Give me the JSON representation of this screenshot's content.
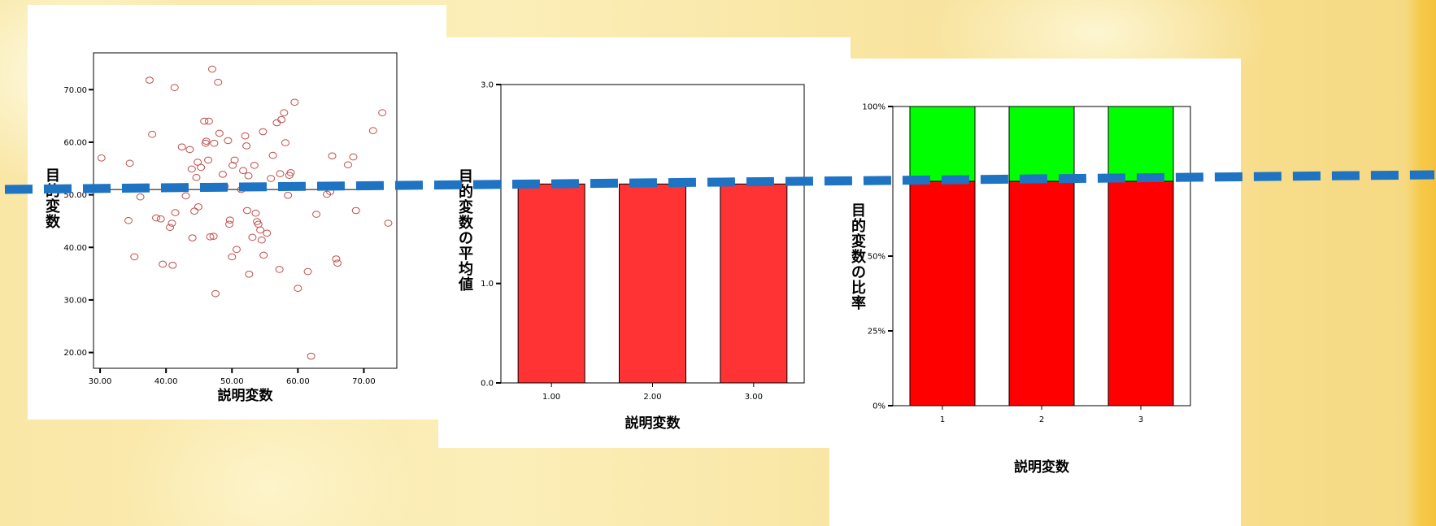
{
  "colors": {
    "scatter_marker": "#c0504d",
    "bar_fill": "#ff3333",
    "stack_lower": "#ff0000",
    "stack_upper": "#00ff00",
    "dashed_line": "#1f73c3"
  },
  "chart_data": [
    {
      "type": "scatter",
      "title": "",
      "xlabel": "説明変数",
      "ylabel": "目的変数",
      "xlim": [
        29,
        75
      ],
      "ylim": [
        17,
        77
      ],
      "x_ticks": [
        "30.00",
        "40.00",
        "50.00",
        "60.00",
        "70.00"
      ],
      "y_ticks": [
        "20.00",
        "30.00",
        "40.00",
        "50.00",
        "60.00",
        "70.00"
      ],
      "mean_line": 51.0,
      "points": [
        [
          30.2,
          57.0
        ],
        [
          34.5,
          56.0
        ],
        [
          34.3,
          45.1
        ],
        [
          35.2,
          38.2
        ],
        [
          36.1,
          49.6
        ],
        [
          37.5,
          71.8
        ],
        [
          37.9,
          61.5
        ],
        [
          38.5,
          45.6
        ],
        [
          39.2,
          45.4
        ],
        [
          39.5,
          36.8
        ],
        [
          40.6,
          43.8
        ],
        [
          40.9,
          44.6
        ],
        [
          41.0,
          36.6
        ],
        [
          41.3,
          70.4
        ],
        [
          41.4,
          46.6
        ],
        [
          41.6,
          51.5
        ],
        [
          42.4,
          59.1
        ],
        [
          43.0,
          49.8
        ],
        [
          43.6,
          58.6
        ],
        [
          43.9,
          54.9
        ],
        [
          44.0,
          41.8
        ],
        [
          44.3,
          46.9
        ],
        [
          44.6,
          53.3
        ],
        [
          44.8,
          56.2
        ],
        [
          44.9,
          47.7
        ],
        [
          45.3,
          55.2
        ],
        [
          45.8,
          64.0
        ],
        [
          46.0,
          59.8
        ],
        [
          46.1,
          60.2
        ],
        [
          46.4,
          56.6
        ],
        [
          46.5,
          64.0
        ],
        [
          46.7,
          42.0
        ],
        [
          47.0,
          73.9
        ],
        [
          47.2,
          42.1
        ],
        [
          47.3,
          59.8
        ],
        [
          47.5,
          31.2
        ],
        [
          47.9,
          71.4
        ],
        [
          48.1,
          61.7
        ],
        [
          48.6,
          53.9
        ],
        [
          48.9,
          51.6
        ],
        [
          49.4,
          60.3
        ],
        [
          49.6,
          44.4
        ],
        [
          49.7,
          45.2
        ],
        [
          50.0,
          38.2
        ],
        [
          50.1,
          55.6
        ],
        [
          50.4,
          56.6
        ],
        [
          50.7,
          39.6
        ],
        [
          51.4,
          51.0
        ],
        [
          51.7,
          54.6
        ],
        [
          52.0,
          61.2
        ],
        [
          52.2,
          59.3
        ],
        [
          52.3,
          47.0
        ],
        [
          52.5,
          53.6
        ],
        [
          52.6,
          34.9
        ],
        [
          52.9,
          51.5
        ],
        [
          53.1,
          41.9
        ],
        [
          53.4,
          55.6
        ],
        [
          53.6,
          46.5
        ],
        [
          53.8,
          44.9
        ],
        [
          54.0,
          44.4
        ],
        [
          54.3,
          43.3
        ],
        [
          54.5,
          41.4
        ],
        [
          54.7,
          62.0
        ],
        [
          54.8,
          38.5
        ],
        [
          55.3,
          42.7
        ],
        [
          55.9,
          53.1
        ],
        [
          56.2,
          57.5
        ],
        [
          56.8,
          63.7
        ],
        [
          57.2,
          35.8
        ],
        [
          57.3,
          54.0
        ],
        [
          57.5,
          64.3
        ],
        [
          57.9,
          65.6
        ],
        [
          58.1,
          59.9
        ],
        [
          58.5,
          49.9
        ],
        [
          58.7,
          53.7
        ],
        [
          58.9,
          54.2
        ],
        [
          59.5,
          67.6
        ],
        [
          60.0,
          32.2
        ],
        [
          61.5,
          35.4
        ],
        [
          62.0,
          19.3
        ],
        [
          62.8,
          46.3
        ],
        [
          64.4,
          50.1
        ],
        [
          64.9,
          50.6
        ],
        [
          65.2,
          57.4
        ],
        [
          65.8,
          37.8
        ],
        [
          66.0,
          37.0
        ],
        [
          67.6,
          55.7
        ],
        [
          68.4,
          57.2
        ],
        [
          68.8,
          47.0
        ],
        [
          71.4,
          62.2
        ],
        [
          72.8,
          65.6
        ],
        [
          73.7,
          44.6
        ]
      ]
    },
    {
      "type": "bar",
      "title": "",
      "xlabel": "説明変数",
      "ylabel": "目的変数の平均値",
      "categories": [
        "1.00",
        "2.00",
        "3.00"
      ],
      "values": [
        2.0,
        2.0,
        2.0
      ],
      "ylim": [
        0,
        3
      ],
      "y_ticks": [
        "0.0",
        "1.0",
        "3.0"
      ]
    },
    {
      "type": "bar",
      "stacked": true,
      "percent": true,
      "title": "",
      "xlabel": "説明変数",
      "ylabel": "目的変数の比率",
      "categories": [
        "1",
        "2",
        "3"
      ],
      "ylim": [
        0,
        100
      ],
      "y_ticks": [
        "0%",
        "25%",
        "50%",
        "100%"
      ],
      "series": [
        {
          "values": [
            75,
            75,
            75
          ]
        },
        {
          "values": [
            25,
            25,
            25
          ]
        }
      ]
    }
  ],
  "overlay": {
    "note": "horizontal dashed line drawn across the three charts",
    "style": "dashed"
  }
}
